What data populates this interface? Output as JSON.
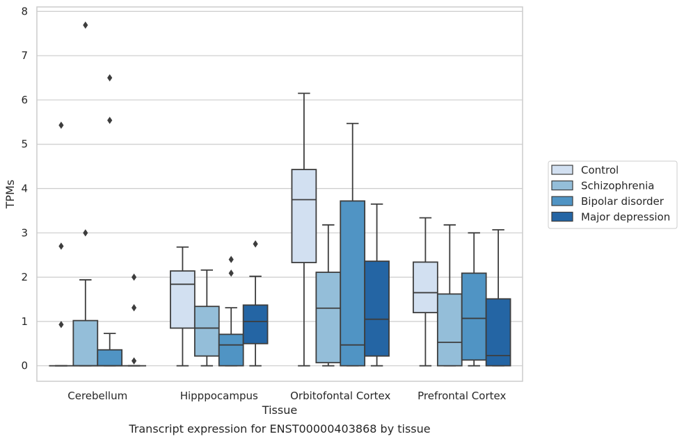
{
  "chart_data": {
    "type": "box",
    "title": "",
    "caption": "Transcript expression for ENST00000403868 by tissue",
    "xlabel": "Tissue",
    "ylabel": "TPMs",
    "ylim": [
      -0.35,
      8.1
    ],
    "yticks": [
      0,
      1,
      2,
      3,
      4,
      5,
      6,
      7,
      8
    ],
    "grid": "horizontal",
    "legend_position": "right",
    "categories": [
      "Cerebellum",
      "Hipppocampus",
      "Orbitofontal Cortex",
      "Prefrontal Cortex"
    ],
    "series": [
      {
        "name": "Control",
        "color": "#d2e0f1",
        "boxes": [
          {
            "whislo": 0,
            "q1": 0,
            "med": 0,
            "q3": 0,
            "whishi": 0,
            "fliers": [
              5.43,
              2.7,
              0.93
            ]
          },
          {
            "whislo": 0,
            "q1": 0.85,
            "med": 1.84,
            "q3": 2.14,
            "whishi": 2.68,
            "fliers": []
          },
          {
            "whislo": 0,
            "q1": 2.33,
            "med": 3.75,
            "q3": 4.43,
            "whishi": 6.15,
            "fliers": []
          },
          {
            "whislo": 0,
            "q1": 1.2,
            "med": 1.65,
            "q3": 2.34,
            "whishi": 3.34,
            "fliers": []
          }
        ]
      },
      {
        "name": "Schizophrenia",
        "color": "#94bed9",
        "boxes": [
          {
            "whislo": 0,
            "q1": 0,
            "med": 0,
            "q3": 1.02,
            "whishi": 1.94,
            "fliers": [
              7.69,
              3.0
            ]
          },
          {
            "whislo": 0,
            "q1": 0.22,
            "med": 0.85,
            "q3": 1.34,
            "whishi": 2.16,
            "fliers": []
          },
          {
            "whislo": 0,
            "q1": 0.07,
            "med": 1.3,
            "q3": 2.11,
            "whishi": 3.18,
            "fliers": []
          },
          {
            "whislo": 0,
            "q1": 0,
            "med": 0.53,
            "q3": 1.62,
            "whishi": 3.18,
            "fliers": []
          }
        ]
      },
      {
        "name": "Bipolar disorder",
        "color": "#5094c4",
        "boxes": [
          {
            "whislo": 0,
            "q1": 0,
            "med": 0,
            "q3": 0.36,
            "whishi": 0.73,
            "fliers": [
              6.5,
              5.54
            ]
          },
          {
            "whislo": 0,
            "q1": 0,
            "med": 0.47,
            "q3": 0.71,
            "whishi": 1.31,
            "fliers": [
              2.4,
              2.09
            ]
          },
          {
            "whislo": 0,
            "q1": 0,
            "med": 0.47,
            "q3": 3.72,
            "whishi": 5.47,
            "fliers": []
          },
          {
            "whislo": 0,
            "q1": 0.13,
            "med": 1.07,
            "q3": 2.09,
            "whishi": 3.0,
            "fliers": []
          }
        ]
      },
      {
        "name": "Major depression",
        "color": "#2465a4",
        "boxes": [
          {
            "whislo": 0,
            "q1": 0,
            "med": 0,
            "q3": 0,
            "whishi": 0,
            "fliers": [
              2.0,
              1.31,
              0.11
            ]
          },
          {
            "whislo": 0,
            "q1": 0.5,
            "med": 1.0,
            "q3": 1.37,
            "whishi": 2.02,
            "fliers": [
              2.75
            ]
          },
          {
            "whislo": 0,
            "q1": 0.22,
            "med": 1.05,
            "q3": 2.36,
            "whishi": 3.65,
            "fliers": []
          },
          {
            "whislo": 0,
            "q1": 0,
            "med": 0.23,
            "q3": 1.51,
            "whishi": 3.07,
            "fliers": []
          }
        ]
      }
    ]
  }
}
